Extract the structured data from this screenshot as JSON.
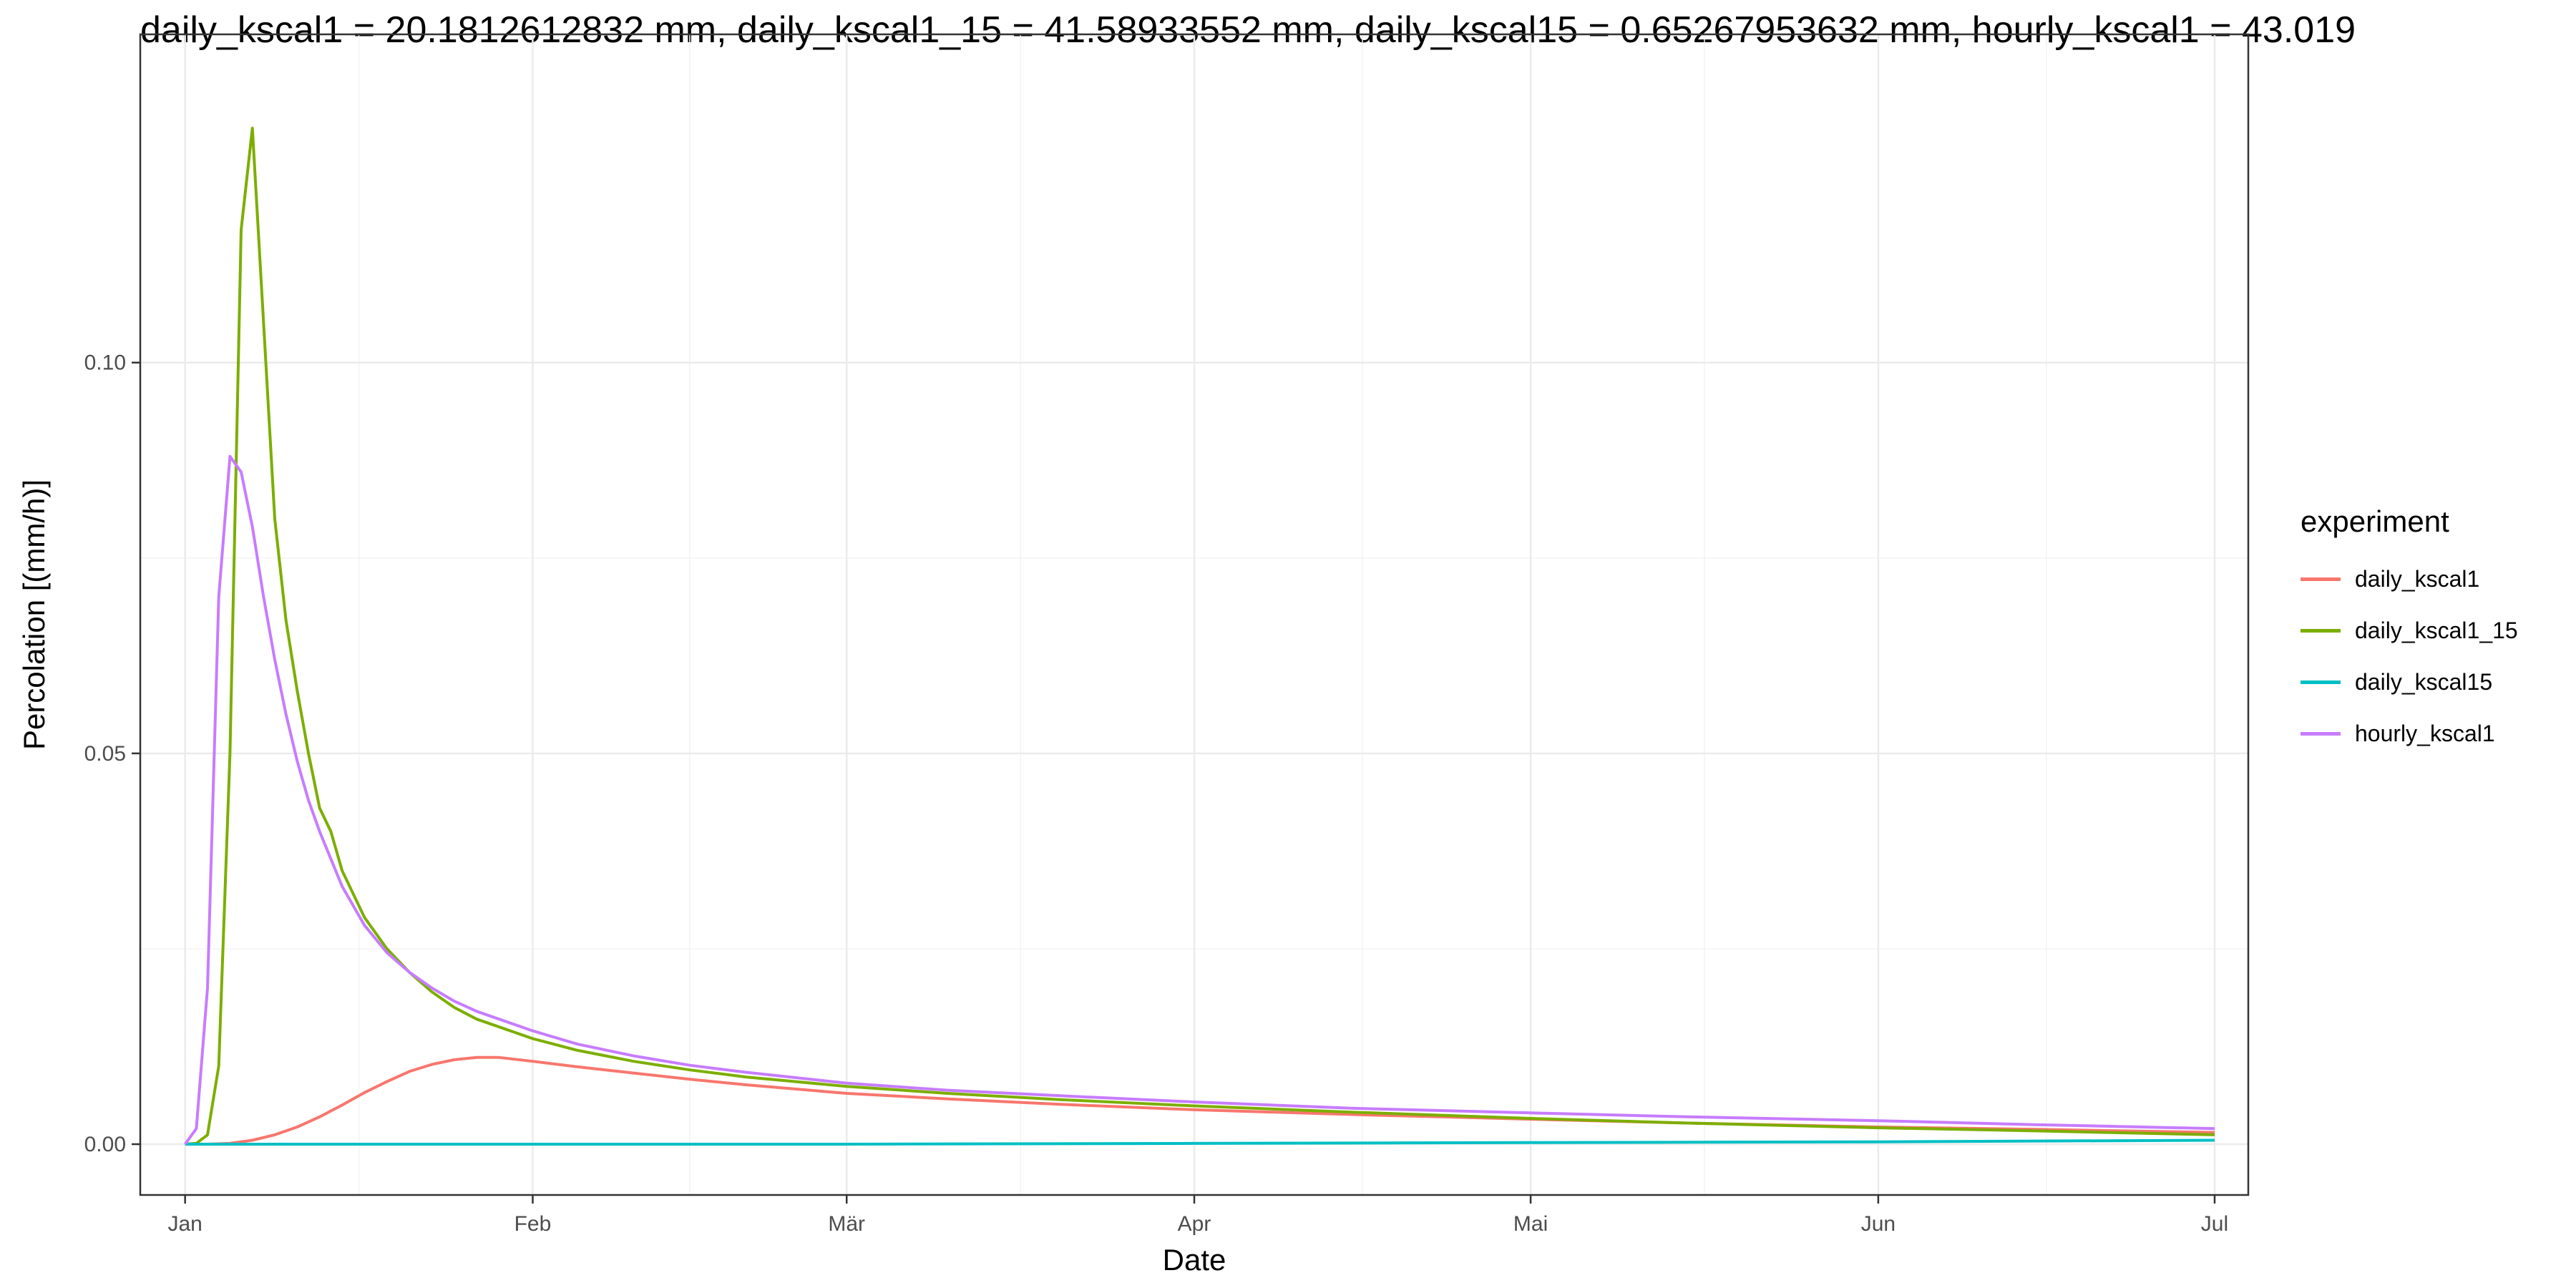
{
  "chart_data": {
    "type": "line",
    "title": "daily_kscal1  = 20.1812612832  mm, daily_kscal1_15  = 41.58933552  mm, daily_kscal15  = 0.65267953632  mm, hourly_kscal1  = 43.019",
    "xlabel": "Date",
    "ylabel": "Percolation [(mm/h)]",
    "x_ticks": [
      "Jan",
      "Feb",
      "Mär",
      "Apr",
      "Mai",
      "Jun",
      "Jul"
    ],
    "x_tick_dates": [
      "2019-01-01",
      "2019-02-01",
      "2019-03-01",
      "2019-04-01",
      "2019-05-01",
      "2019-06-01",
      "2019-07-01"
    ],
    "xlim": [
      "2018-12-28",
      "2019-07-04"
    ],
    "y_ticks": [
      "0.00",
      "0.05",
      "0.10"
    ],
    "ylim": [
      -0.0065,
      0.142
    ],
    "grid": true,
    "legend": {
      "title": "experiment",
      "position": "right"
    },
    "series": [
      {
        "name": "daily_kscal1",
        "color": "#F8766D",
        "x": [
          "2019-01-01",
          "2019-01-03",
          "2019-01-05",
          "2019-01-07",
          "2019-01-09",
          "2019-01-11",
          "2019-01-13",
          "2019-01-15",
          "2019-01-17",
          "2019-01-19",
          "2019-01-21",
          "2019-01-23",
          "2019-01-25",
          "2019-01-27",
          "2019-01-29",
          "2019-02-01",
          "2019-02-05",
          "2019-02-10",
          "2019-02-15",
          "2019-02-20",
          "2019-03-01",
          "2019-03-10",
          "2019-03-20",
          "2019-04-01",
          "2019-04-15",
          "2019-05-01",
          "2019-05-15",
          "2019-06-01",
          "2019-06-15",
          "2019-07-01"
        ],
        "values": [
          0.0,
          0.0,
          0.0001,
          0.0005,
          0.0012,
          0.0022,
          0.0035,
          0.005,
          0.0066,
          0.008,
          0.0093,
          0.0102,
          0.0108,
          0.0111,
          0.0111,
          0.0106,
          0.0099,
          0.0091,
          0.0083,
          0.0076,
          0.0065,
          0.0058,
          0.0051,
          0.0044,
          0.0038,
          0.0032,
          0.0027,
          0.0022,
          0.0019,
          0.0015
        ]
      },
      {
        "name": "daily_kscal1_15",
        "color": "#7CAE00",
        "x": [
          "2019-01-01",
          "2019-01-02",
          "2019-01-03",
          "2019-01-04",
          "2019-01-05",
          "2019-01-06",
          "2019-01-07",
          "2019-01-08",
          "2019-01-09",
          "2019-01-10",
          "2019-01-11",
          "2019-01-12",
          "2019-01-13",
          "2019-01-14",
          "2019-01-15",
          "2019-01-17",
          "2019-01-19",
          "2019-01-21",
          "2019-01-23",
          "2019-01-25",
          "2019-01-27",
          "2019-02-01",
          "2019-02-05",
          "2019-02-10",
          "2019-02-15",
          "2019-02-20",
          "2019-03-01",
          "2019-03-10",
          "2019-03-20",
          "2019-04-01",
          "2019-04-15",
          "2019-05-01",
          "2019-05-15",
          "2019-06-01",
          "2019-06-15",
          "2019-07-01"
        ],
        "values": [
          0.0,
          0.0001,
          0.0012,
          0.01,
          0.05,
          0.117,
          0.13,
          0.105,
          0.08,
          0.067,
          0.058,
          0.05,
          0.043,
          0.04,
          0.035,
          0.029,
          0.025,
          0.022,
          0.0195,
          0.0175,
          0.016,
          0.0135,
          0.012,
          0.0106,
          0.0095,
          0.0086,
          0.0074,
          0.0065,
          0.0057,
          0.0049,
          0.0041,
          0.0033,
          0.0027,
          0.0021,
          0.0017,
          0.0012
        ]
      },
      {
        "name": "daily_kscal15",
        "color": "#00BFC4",
        "x": [
          "2019-01-01",
          "2019-02-01",
          "2019-03-01",
          "2019-04-01",
          "2019-05-01",
          "2019-06-01",
          "2019-07-01"
        ],
        "values": [
          0.0,
          0.0,
          0.0,
          0.0001,
          0.0002,
          0.0003,
          0.0005
        ]
      },
      {
        "name": "hourly_kscal1",
        "color": "#C77CFF",
        "x": [
          "2019-01-01",
          "2019-01-02",
          "2019-01-03",
          "2019-01-04",
          "2019-01-05",
          "2019-01-06",
          "2019-01-07",
          "2019-01-08",
          "2019-01-09",
          "2019-01-10",
          "2019-01-11",
          "2019-01-12",
          "2019-01-13",
          "2019-01-15",
          "2019-01-17",
          "2019-01-19",
          "2019-01-21",
          "2019-01-23",
          "2019-01-25",
          "2019-01-27",
          "2019-02-01",
          "2019-02-05",
          "2019-02-10",
          "2019-02-15",
          "2019-02-20",
          "2019-03-01",
          "2019-03-10",
          "2019-03-20",
          "2019-04-01",
          "2019-04-15",
          "2019-05-01",
          "2019-05-15",
          "2019-06-01",
          "2019-06-15",
          "2019-07-01"
        ],
        "values": [
          0.0,
          0.002,
          0.02,
          0.07,
          0.088,
          0.086,
          0.079,
          0.07,
          0.062,
          0.055,
          0.049,
          0.044,
          0.04,
          0.033,
          0.028,
          0.0245,
          0.022,
          0.02,
          0.0183,
          0.017,
          0.0145,
          0.0128,
          0.0113,
          0.0101,
          0.0092,
          0.0078,
          0.0069,
          0.0062,
          0.0054,
          0.0046,
          0.004,
          0.0035,
          0.003,
          0.0025,
          0.002
        ]
      }
    ]
  }
}
